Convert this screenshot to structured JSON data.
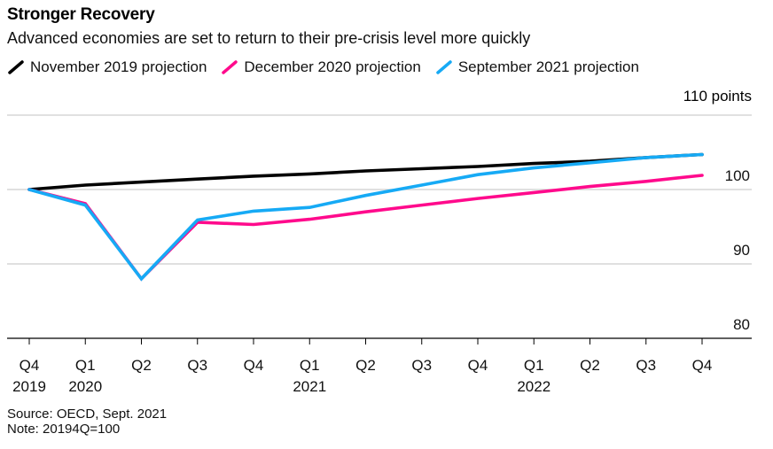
{
  "chart_data": {
    "type": "line",
    "title": "Stronger Recovery",
    "subtitle": "Advanced economies are set to return to their pre-crisis level more quickly",
    "xlabel": "",
    "ylabel": "points",
    "unit_label": "110 points",
    "ylim": [
      80,
      110
    ],
    "yticks": [
      80,
      90,
      100,
      110
    ],
    "ytick_labels": [
      "80",
      "90",
      "100",
      "110 points"
    ],
    "grid": true,
    "legend_position": "top-left",
    "categories": [
      "Q4 2019",
      "Q1 2020",
      "Q2 2020",
      "Q3 2020",
      "Q4 2020",
      "Q1 2021",
      "Q2 2021",
      "Q3 2021",
      "Q4 2021",
      "Q1 2022",
      "Q2 2022",
      "Q3 2022",
      "Q4 2022"
    ],
    "x_tick_labels": [
      {
        "quarter": "Q4",
        "year": "2019"
      },
      {
        "quarter": "Q1",
        "year": "2020"
      },
      {
        "quarter": "Q2",
        "year": ""
      },
      {
        "quarter": "Q3",
        "year": ""
      },
      {
        "quarter": "Q4",
        "year": ""
      },
      {
        "quarter": "Q1",
        "year": "2021"
      },
      {
        "quarter": "Q2",
        "year": ""
      },
      {
        "quarter": "Q3",
        "year": ""
      },
      {
        "quarter": "Q4",
        "year": ""
      },
      {
        "quarter": "Q1",
        "year": "2022"
      },
      {
        "quarter": "Q2",
        "year": ""
      },
      {
        "quarter": "Q3",
        "year": ""
      },
      {
        "quarter": "Q4",
        "year": ""
      }
    ],
    "series": [
      {
        "name": "November 2019 projection",
        "color": "#000000",
        "values": [
          100,
          100.6,
          101.0,
          101.4,
          101.8,
          102.1,
          102.5,
          102.8,
          103.1,
          103.5,
          103.8,
          104.3,
          104.7
        ]
      },
      {
        "name": "December 2020 projection",
        "color": "#ff0a8c",
        "values": [
          100,
          98.1,
          88.0,
          95.6,
          95.3,
          96.0,
          97.0,
          97.9,
          98.8,
          99.6,
          100.4,
          101.1,
          101.9
        ]
      },
      {
        "name": "September 2021 projection",
        "color": "#16aaf5",
        "values": [
          100,
          97.9,
          88.0,
          95.9,
          97.1,
          97.6,
          99.2,
          100.6,
          102.0,
          102.9,
          103.6,
          104.3,
          104.7
        ]
      }
    ],
    "source": "Source: OECD, Sept. 2021",
    "note": "Note: 20194Q=100"
  },
  "colors": {
    "grid": "#d6d6d6",
    "axis": "#000000"
  }
}
